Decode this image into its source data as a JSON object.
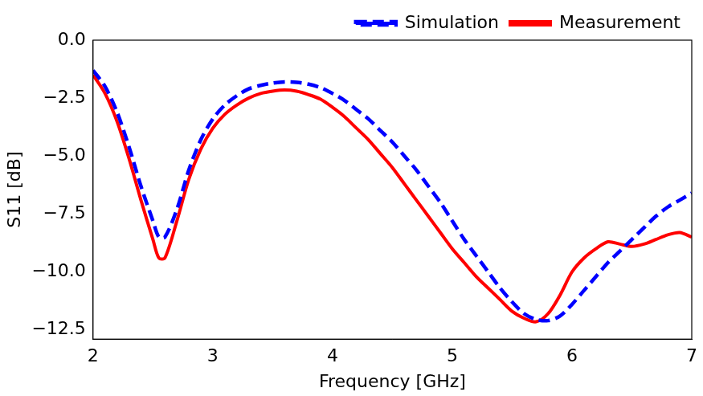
{
  "chart_data": {
    "type": "line",
    "x_label": "Frequency [GHz]",
    "y_label": "S11 [dB]",
    "x": [
      2.0,
      2.1,
      2.2,
      2.3,
      2.4,
      2.5,
      2.55,
      2.6,
      2.7,
      2.8,
      2.9,
      3.0,
      3.1,
      3.2,
      3.3,
      3.4,
      3.5,
      3.6,
      3.7,
      3.8,
      3.9,
      4.0,
      4.1,
      4.2,
      4.3,
      4.4,
      4.5,
      4.6,
      4.7,
      4.8,
      4.9,
      5.0,
      5.1,
      5.2,
      5.3,
      5.4,
      5.5,
      5.6,
      5.7,
      5.8,
      5.9,
      6.0,
      6.1,
      6.2,
      6.3,
      6.4,
      6.5,
      6.6,
      6.7,
      6.8,
      6.9,
      7.0
    ],
    "series": [
      {
        "name": "Simulation",
        "color": "#0000ff",
        "line_style": "dashed",
        "marker": "none",
        "values": [
          -1.3,
          -2.0,
          -3.1,
          -4.6,
          -6.3,
          -7.8,
          -8.5,
          -8.5,
          -7.3,
          -5.6,
          -4.3,
          -3.4,
          -2.8,
          -2.4,
          -2.1,
          -1.95,
          -1.85,
          -1.8,
          -1.82,
          -1.9,
          -2.05,
          -2.3,
          -2.6,
          -3.0,
          -3.4,
          -3.9,
          -4.4,
          -5.0,
          -5.6,
          -6.3,
          -7.0,
          -7.8,
          -8.6,
          -9.3,
          -10.0,
          -10.7,
          -11.3,
          -11.8,
          -12.05,
          -12.1,
          -11.9,
          -11.4,
          -10.8,
          -10.2,
          -9.6,
          -9.1,
          -8.6,
          -8.1,
          -7.6,
          -7.2,
          -6.9,
          -6.6
        ]
      },
      {
        "name": "Measurement",
        "color": "#ff0000",
        "line_style": "solid",
        "marker": "none",
        "values": [
          -1.5,
          -2.3,
          -3.5,
          -5.1,
          -6.9,
          -8.6,
          -9.4,
          -9.4,
          -7.8,
          -6.0,
          -4.7,
          -3.8,
          -3.2,
          -2.8,
          -2.5,
          -2.3,
          -2.2,
          -2.15,
          -2.2,
          -2.35,
          -2.55,
          -2.9,
          -3.3,
          -3.8,
          -4.3,
          -4.9,
          -5.5,
          -6.2,
          -6.9,
          -7.6,
          -8.3,
          -9.0,
          -9.6,
          -10.2,
          -10.7,
          -11.2,
          -11.7,
          -12.0,
          -12.15,
          -11.8,
          -11.0,
          -10.0,
          -9.4,
          -9.0,
          -8.7,
          -8.8,
          -8.9,
          -8.8,
          -8.6,
          -8.4,
          -8.3,
          -8.5
        ]
      }
    ],
    "xlim": [
      2,
      7
    ],
    "xticks": [
      2,
      3,
      4,
      5,
      6,
      7
    ],
    "ylim": [
      -12.9,
      0
    ],
    "yticks": [
      {
        "value": 0,
        "label": "0.0"
      },
      {
        "value": -2.5,
        "label": "−2.5"
      },
      {
        "value": -5,
        "label": "−5.0"
      },
      {
        "value": -7.5,
        "label": "−7.5"
      },
      {
        "value": -10,
        "label": "−10.0"
      },
      {
        "value": -12.5,
        "label": "−12.5"
      }
    ],
    "grid": false,
    "legend": "upper right"
  }
}
